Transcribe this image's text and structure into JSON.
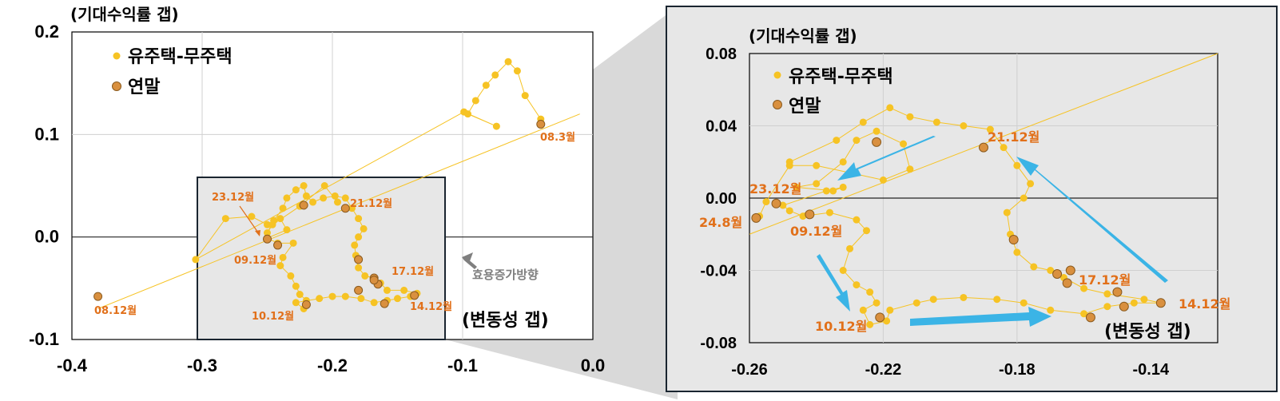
{
  "chart_data": [
    {
      "type": "scatter",
      "ylabel": "(기대수익률 갭)",
      "xlabel": "(변동성 갭)",
      "xlim": [
        -0.4,
        0.0
      ],
      "ylim": [
        -0.1,
        0.2
      ],
      "xticks": [
        -0.4,
        -0.3,
        -0.2,
        -0.1,
        0.0
      ],
      "xtick_labels": [
        "-0.4",
        "-0.3",
        "-0.2",
        "-0.1",
        "0.0"
      ],
      "yticks": [
        -0.1,
        0.0,
        0.1,
        0.2
      ],
      "ytick_labels": [
        "-0.1",
        "0.0",
        "0.1",
        "0.2"
      ],
      "legend": {
        "placement": "top-left",
        "entries": [
          {
            "label": "유주택-무주택",
            "color": "#f6c324"
          },
          {
            "label": "연말",
            "color": "#d9903f"
          }
        ]
      },
      "series": [
        {
          "name": "유주택-무주택",
          "color": "#f6c324",
          "points": [
            [
              -0.04,
              0.115
            ],
            [
              -0.052,
              0.138
            ],
            [
              -0.058,
              0.162
            ],
            [
              -0.065,
              0.171
            ],
            [
              -0.075,
              0.158
            ],
            [
              -0.082,
              0.148
            ],
            [
              -0.09,
              0.133
            ],
            [
              -0.096,
              0.12
            ],
            [
              -0.074,
              0.108
            ],
            [
              -0.099,
              0.122
            ],
            [
              -0.305,
              -0.022
            ],
            [
              -0.282,
              0.018
            ],
            [
              -0.262,
              0.02
            ],
            [
              -0.25,
              0.012
            ],
            [
              -0.24,
              0.018
            ],
            [
              -0.235,
              0.007
            ],
            [
              -0.25,
              -0.001
            ],
            [
              -0.242,
              -0.006
            ],
            [
              -0.23,
              -0.006
            ],
            [
              -0.238,
              -0.02
            ],
            [
              -0.24,
              -0.028
            ],
            [
              -0.232,
              -0.038
            ],
            [
              -0.228,
              -0.048
            ],
            [
              -0.225,
              -0.056
            ],
            [
              -0.22,
              -0.062
            ],
            [
              -0.222,
              -0.07
            ],
            [
              -0.228,
              -0.064
            ],
            [
              -0.21,
              -0.06
            ],
            [
              -0.2,
              -0.058
            ],
            [
              -0.19,
              -0.058
            ],
            [
              -0.178,
              -0.06
            ],
            [
              -0.168,
              -0.064
            ],
            [
              -0.158,
              -0.062
            ],
            [
              -0.15,
              -0.06
            ],
            [
              -0.14,
              -0.058
            ],
            [
              -0.135,
              -0.055
            ],
            [
              -0.145,
              -0.052
            ],
            [
              -0.158,
              -0.052
            ],
            [
              -0.163,
              -0.045
            ],
            [
              -0.168,
              -0.04
            ],
            [
              -0.175,
              -0.038
            ],
            [
              -0.18,
              -0.03
            ],
            [
              -0.182,
              -0.018
            ],
            [
              -0.183,
              -0.008
            ],
            [
              -0.18,
              0.0
            ],
            [
              -0.176,
              0.008
            ],
            [
              -0.18,
              0.018
            ],
            [
              -0.185,
              0.028
            ],
            [
              -0.19,
              0.038
            ],
            [
              -0.198,
              0.04
            ],
            [
              -0.207,
              0.038
            ],
            [
              -0.215,
              0.034
            ],
            [
              -0.22,
              0.04
            ],
            [
              -0.222,
              0.05
            ],
            [
              -0.228,
              0.046
            ],
            [
              -0.235,
              0.038
            ],
            [
              -0.238,
              0.028
            ],
            [
              -0.245,
              0.016
            ],
            [
              -0.25,
              0.004
            ],
            [
              -0.246,
              0.012
            ],
            [
              -0.225,
              0.03
            ],
            [
              -0.206,
              0.05
            ],
            [
              -0.196,
              0.034
            ]
          ]
        },
        {
          "name": "연말",
          "color": "#d9903f",
          "points": [
            [
              -0.04,
              0.11
            ],
            [
              -0.38,
              -0.058
            ],
            [
              -0.222,
              0.031
            ],
            [
              -0.19,
              0.028
            ],
            [
              -0.25,
              -0.002
            ],
            [
              -0.242,
              -0.008
            ],
            [
              -0.18,
              -0.022
            ],
            [
              -0.18,
              -0.052
            ],
            [
              -0.168,
              -0.04
            ],
            [
              -0.165,
              -0.046
            ],
            [
              -0.137,
              -0.057
            ],
            [
              -0.16,
              -0.065
            ],
            [
              -0.22,
              -0.066
            ],
            [
              -0.168,
              -0.042
            ]
          ]
        }
      ],
      "annotations": [
        "08.3월",
        "08.12월",
        "23.12월",
        "21.12월",
        "09.12월",
        "17.12월",
        "10.12월",
        "14.12월",
        "효용증가방향"
      ]
    },
    {
      "type": "scatter",
      "ylabel": "(기대수익률 갭)",
      "xlabel": "(변동성 갭)",
      "xlim": [
        -0.26,
        -0.12
      ],
      "ylim": [
        -0.08,
        0.08
      ],
      "xticks": [
        -0.26,
        -0.22,
        -0.18,
        -0.14
      ],
      "xtick_labels": [
        "-0.26",
        "-0.22",
        "-0.18",
        "-0.14"
      ],
      "yticks": [
        -0.08,
        -0.04,
        0.0,
        0.04,
        0.08
      ],
      "ytick_labels": [
        "-0.08",
        "-0.04",
        "0.00",
        "0.04",
        "0.08"
      ],
      "legend": {
        "placement": "top-left",
        "entries": [
          {
            "label": "유주택-무주택",
            "color": "#f6c324"
          },
          {
            "label": "연말",
            "color": "#d9903f"
          }
        ]
      },
      "series": [
        {
          "name": "유주택-무주택",
          "color": "#f6c324",
          "points": [
            [
              -0.257,
              -0.01
            ],
            [
              -0.255,
              -0.002
            ],
            [
              -0.248,
              0.018
            ],
            [
              -0.24,
              0.018
            ],
            [
              -0.23,
              0.014
            ],
            [
              -0.22,
              0.01
            ],
            [
              -0.212,
              0.016
            ],
            [
              -0.214,
              0.03
            ],
            [
              -0.222,
              0.037
            ],
            [
              -0.228,
              0.032
            ],
            [
              -0.232,
              0.02
            ],
            [
              -0.24,
              0.008
            ],
            [
              -0.246,
              0.006
            ],
            [
              -0.235,
              0.004
            ],
            [
              -0.232,
              0.006
            ],
            [
              -0.237,
              0.004
            ],
            [
              -0.25,
              -0.004
            ],
            [
              -0.248,
              -0.007
            ],
            [
              -0.244,
              -0.01
            ],
            [
              -0.236,
              -0.008
            ],
            [
              -0.228,
              -0.012
            ],
            [
              -0.225,
              -0.018
            ],
            [
              -0.23,
              -0.028
            ],
            [
              -0.232,
              -0.04
            ],
            [
              -0.228,
              -0.048
            ],
            [
              -0.224,
              -0.052
            ],
            [
              -0.222,
              -0.058
            ],
            [
              -0.226,
              -0.062
            ],
            [
              -0.224,
              -0.07
            ],
            [
              -0.219,
              -0.068
            ],
            [
              -0.218,
              -0.062
            ],
            [
              -0.21,
              -0.058
            ],
            [
              -0.205,
              -0.056
            ],
            [
              -0.196,
              -0.055
            ],
            [
              -0.186,
              -0.056
            ],
            [
              -0.178,
              -0.058
            ],
            [
              -0.17,
              -0.062
            ],
            [
              -0.16,
              -0.064
            ],
            [
              -0.153,
              -0.06
            ],
            [
              -0.145,
              -0.058
            ],
            [
              -0.137,
              -0.058
            ],
            [
              -0.142,
              -0.056
            ],
            [
              -0.153,
              -0.053
            ],
            [
              -0.16,
              -0.05
            ],
            [
              -0.166,
              -0.044
            ],
            [
              -0.17,
              -0.04
            ],
            [
              -0.175,
              -0.038
            ],
            [
              -0.18,
              -0.03
            ],
            [
              -0.182,
              -0.02
            ],
            [
              -0.183,
              -0.008
            ],
            [
              -0.178,
              0.0
            ],
            [
              -0.176,
              0.008
            ],
            [
              -0.18,
              0.018
            ],
            [
              -0.184,
              0.028
            ],
            [
              -0.188,
              0.038
            ],
            [
              -0.196,
              0.04
            ],
            [
              -0.204,
              0.042
            ],
            [
              -0.212,
              0.045
            ],
            [
              -0.218,
              0.05
            ],
            [
              -0.226,
              0.042
            ],
            [
              -0.234,
              0.032
            ],
            [
              -0.248,
              0.02
            ]
          ]
        },
        {
          "name": "연말",
          "color": "#d9903f",
          "points": [
            [
              -0.19,
              0.028
            ],
            [
              -0.222,
              0.031
            ],
            [
              -0.252,
              -0.003
            ],
            [
              -0.258,
              -0.011
            ],
            [
              -0.242,
              -0.009
            ],
            [
              -0.181,
              -0.023
            ],
            [
              -0.164,
              -0.04
            ],
            [
              -0.168,
              -0.042
            ],
            [
              -0.165,
              -0.047
            ],
            [
              -0.15,
              -0.052
            ],
            [
              -0.137,
              -0.058
            ],
            [
              -0.148,
              -0.06
            ],
            [
              -0.158,
              -0.066
            ],
            [
              -0.221,
              -0.066
            ]
          ]
        }
      ],
      "annotations": [
        "23.12월",
        "21.12월",
        "24.8월",
        "09.12월",
        "17.12월",
        "10.12월",
        "14.12월"
      ]
    }
  ]
}
